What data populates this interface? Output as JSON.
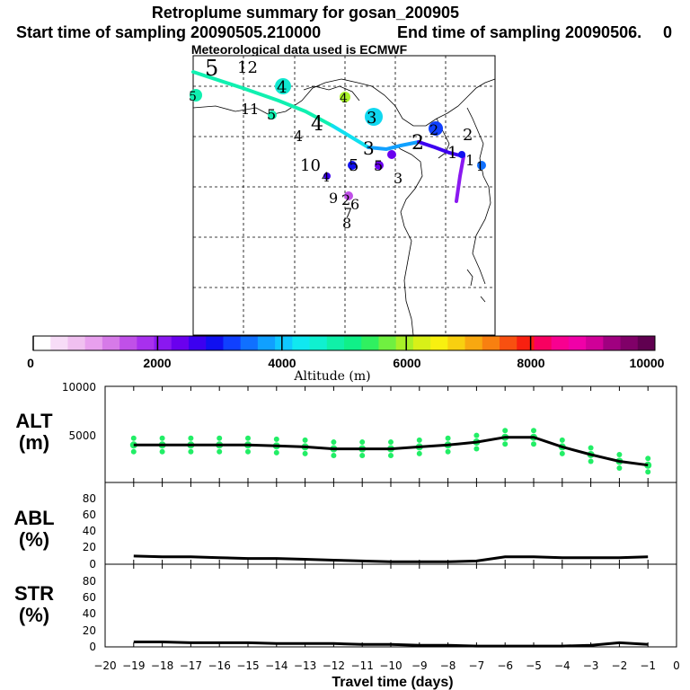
{
  "title": "Retroplume summary for gosan_200905",
  "subtitle_start": "Start time of sampling 20090505.210000",
  "subtitle_end": "End time of sampling 20090506.",
  "subtitle_tail": "0",
  "met_line": "Meteorological data used is ECMWF",
  "colors": {
    "line": "#000000",
    "marker": "#22ee66",
    "palette": [
      "#ffffff",
      "#f7dcf7",
      "#f0c0f0",
      "#e8a0ee",
      "#d67ae8",
      "#c050e8",
      "#a830ee",
      "#8a18f0",
      "#6a00ee",
      "#3c00f0",
      "#1010f0",
      "#1040ff",
      "#1070ff",
      "#10a0ff",
      "#10c8ff",
      "#10e8f0",
      "#10f0d0",
      "#10f0a8",
      "#10f088",
      "#30f060",
      "#70f040",
      "#a8f028",
      "#d8f018",
      "#f8f010",
      "#f8d010",
      "#f8a810",
      "#f88010",
      "#f85010",
      "#f82010",
      "#f80060",
      "#f80090",
      "#f000a8",
      "#d00098",
      "#a00080",
      "#800068",
      "#600050"
    ]
  },
  "map": {
    "markers": [
      {
        "label": "5",
        "size": "large"
      },
      {
        "label": "12"
      },
      {
        "label": "4",
        "bubble": "#10e8d0"
      },
      {
        "label": "4",
        "bubble": "#a8f028"
      },
      {
        "label": "5",
        "bubble": "#10f0b0"
      },
      {
        "label": "11"
      },
      {
        "label": "5"
      },
      {
        "label": "4"
      },
      {
        "label": "3",
        "bubble": "#10d8f0"
      },
      {
        "label": "4"
      },
      {
        "label": "2",
        "bubble": "#1040ff"
      },
      {
        "label": "2"
      },
      {
        "label": "10"
      },
      {
        "label": "3"
      },
      {
        "label": "2"
      },
      {
        "label": "1"
      },
      {
        "label": "4"
      },
      {
        "label": "5"
      },
      {
        "label": "5"
      },
      {
        "label": "3"
      },
      {
        "label": "9"
      },
      {
        "label": "2"
      },
      {
        "label": "6"
      },
      {
        "label": "7"
      },
      {
        "label": "8"
      },
      {
        "label": "1"
      },
      {
        "label": "1"
      }
    ]
  },
  "colorbar": {
    "ticks": [
      "0",
      "2000",
      "4000",
      "6000",
      "8000",
      "10000"
    ],
    "label": "Altitude (m)"
  },
  "chart_data": [
    {
      "type": "line",
      "panel": "ALT",
      "ylabel_top": "ALT",
      "ylabel_bottom": "(m)",
      "ylim": [
        0,
        10000
      ],
      "yticks": [
        "10000",
        "5000"
      ],
      "x": [
        -19,
        -18,
        -17,
        -16,
        -15,
        -14,
        -13,
        -12,
        -11,
        -10,
        -9,
        -8,
        -7,
        -6,
        -5,
        -4,
        -3,
        -2,
        -1
      ],
      "values": [
        3900,
        3900,
        3900,
        3900,
        3900,
        3800,
        3700,
        3500,
        3500,
        3500,
        3700,
        3900,
        4200,
        4700,
        4700,
        3700,
        2900,
        2200,
        1800
      ]
    },
    {
      "type": "line",
      "panel": "ABL",
      "ylabel_top": "ABL",
      "ylabel_bottom": "(%)",
      "ylim": [
        0,
        100
      ],
      "yticks": [
        "80",
        "60",
        "40",
        "20",
        "0"
      ],
      "x": [
        -19,
        -18,
        -17,
        -16,
        -15,
        -14,
        -13,
        -12,
        -11,
        -10,
        -9,
        -8,
        -7,
        -6,
        -5,
        -4,
        -3,
        -2,
        -1
      ],
      "values": [
        10,
        9,
        9,
        8,
        7,
        7,
        6,
        5,
        4,
        3,
        3,
        3,
        4,
        9,
        9,
        8,
        8,
        8,
        9
      ]
    },
    {
      "type": "line",
      "panel": "STR",
      "ylabel_top": "STR",
      "ylabel_bottom": "(%)",
      "ylim": [
        0,
        100
      ],
      "yticks": [
        "80",
        "60",
        "40",
        "20",
        "0"
      ],
      "x": [
        -19,
        -18,
        -17,
        -16,
        -15,
        -14,
        -13,
        -12,
        -11,
        -10,
        -9,
        -8,
        -7,
        -6,
        -5,
        -4,
        -3,
        -2,
        -1
      ],
      "values": [
        6,
        6,
        5,
        5,
        5,
        4,
        4,
        4,
        3,
        3,
        2,
        2,
        1,
        1,
        1,
        1,
        2,
        5,
        3
      ]
    }
  ],
  "xaxis": {
    "xlim": [
      -20,
      0
    ],
    "ticks": [
      "−20",
      "−19",
      "−18",
      "−17",
      "−16",
      "−15",
      "−14",
      "−13",
      "−12",
      "−11",
      "−10",
      "−9",
      "−8",
      "−7",
      "−6",
      "−5",
      "−4",
      "−3",
      "−2",
      "−1",
      "0"
    ],
    "label": "Travel time (days)"
  }
}
